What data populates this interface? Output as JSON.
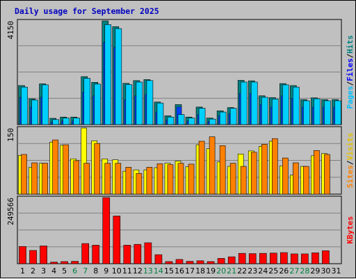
{
  "title": "Daily usage for September 2025",
  "colors": {
    "hits": "#00c0e0",
    "hits_dark": "#008080",
    "files": "#0040ff",
    "pages": "#00d0ff",
    "visits": "#ffff00",
    "visits_dark": "#c0a000",
    "sites": "#ff8000",
    "sites_dark": "#c04000",
    "kbytes": "#ff0000",
    "kbytes_dark": "#a00000",
    "weekend_label": "#008040",
    "title": "#0000c0",
    "panel_bg": "#c0c0c0",
    "grid": "#808080"
  },
  "chart_data": [
    {
      "type": "bar",
      "panel": "hits-files-pages",
      "ymax_label": "4150",
      "ymax": 4150,
      "legend": [
        {
          "label": "Hits",
          "color": "#008080"
        },
        {
          "label": "Files",
          "color": "#0000ff"
        },
        {
          "label": "Pages",
          "color": "#00c0ff"
        }
      ],
      "separator": "/",
      "series": [
        {
          "name": "Hits",
          "values": [
            1560,
            1030,
            1630,
            250,
            300,
            300,
            1920,
            1690,
            4150,
            3920,
            1650,
            1760,
            1800,
            900,
            350,
            800,
            300,
            700,
            260,
            550,
            680,
            1770,
            1750,
            1150,
            1080,
            1640,
            1560,
            1000,
            1070,
            1000,
            1000
          ]
        },
        {
          "name": "Files",
          "values": [
            1100,
            700,
            1100,
            100,
            150,
            150,
            1300,
            1150,
            3300,
            3100,
            1000,
            1150,
            1200,
            500,
            180,
            700,
            150,
            400,
            130,
            350,
            430,
            1250,
            1250,
            800,
            700,
            1150,
            1050,
            700,
            700,
            700,
            700
          ]
        },
        {
          "name": "Pages",
          "values": [
            1500,
            980,
            1590,
            200,
            260,
            260,
            1850,
            1620,
            4000,
            3840,
            1600,
            1700,
            1760,
            860,
            300,
            400,
            260,
            650,
            220,
            500,
            650,
            1700,
            1700,
            1090,
            1020,
            1590,
            1500,
            950,
            1030,
            950,
            950
          ]
        }
      ]
    },
    {
      "type": "bar",
      "panel": "visits-sites",
      "ymax_label": "150",
      "ymax": 150,
      "legend": [
        {
          "label": "Visits",
          "color": "#e0c000"
        },
        {
          "label": "Sites",
          "color": "#ff8000"
        }
      ],
      "separator": "/",
      "series": [
        {
          "name": "Visits",
          "values": [
            88,
            61,
            70,
            118,
            111,
            80,
            150,
            121,
            80,
            78,
            52,
            55,
            55,
            60,
            70,
            75,
            62,
            112,
            103,
            73,
            63,
            91,
            98,
            108,
            120,
            64,
            43,
            63,
            87,
            92,
            0
          ]
        },
        {
          "name": "Sites",
          "values": [
            90,
            71,
            70,
            123,
            112,
            76,
            70,
            115,
            70,
            70,
            61,
            47,
            61,
            69,
            67,
            70,
            68,
            120,
            130,
            110,
            70,
            63,
            95,
            113,
            126,
            82,
            71,
            63,
            99,
            90,
            0
          ]
        }
      ]
    },
    {
      "type": "bar",
      "panel": "kbytes",
      "ymax_label": "249566",
      "ymax": 249566,
      "legend": [
        {
          "label": "KBytes",
          "color": "#ff0000"
        }
      ],
      "categories": [
        "1",
        "2",
        "3",
        "4",
        "5",
        "6",
        "7",
        "8",
        "9",
        "10",
        "11",
        "12",
        "13",
        "14",
        "15",
        "16",
        "17",
        "18",
        "19",
        "20",
        "21",
        "22",
        "23",
        "24",
        "25",
        "26",
        "27",
        "28",
        "29",
        "30",
        "31"
      ],
      "weekend_days": [
        "6",
        "7",
        "13",
        "14",
        "20",
        "21",
        "27",
        "28"
      ],
      "series": [
        {
          "name": "KBytes",
          "values": [
            65000,
            50000,
            67000,
            6000,
            8000,
            9000,
            76000,
            70000,
            249566,
            180000,
            70000,
            73000,
            79000,
            34000,
            8000,
            16000,
            9000,
            11000,
            8000,
            20000,
            26000,
            39000,
            38000,
            39000,
            40000,
            42000,
            37000,
            37000,
            41000,
            49000,
            0
          ]
        }
      ]
    }
  ]
}
